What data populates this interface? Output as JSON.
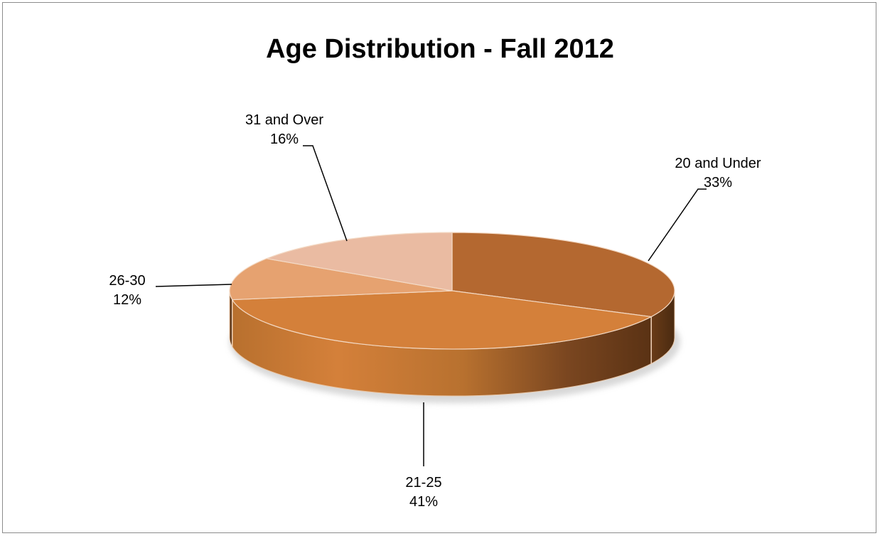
{
  "chart_data": {
    "type": "pie",
    "title": "Age Distribution - Fall 2012",
    "style": "3d-exploded-none",
    "slices": [
      {
        "label": "20 and Under",
        "value": 33,
        "value_label": "33%",
        "color": "#B46830"
      },
      {
        "label": "21-25",
        "value": 41,
        "value_label": "41%",
        "color": "#D4803A"
      },
      {
        "label": "26-30",
        "value": 12,
        "value_label": "12%",
        "color": "#E6A270"
      },
      {
        "label": "31 and Over",
        "value": 16,
        "value_label": "16%",
        "color": "#EABBA2"
      }
    ]
  },
  "colors": {
    "border": "#8c8c8c",
    "background": "#ffffff"
  }
}
